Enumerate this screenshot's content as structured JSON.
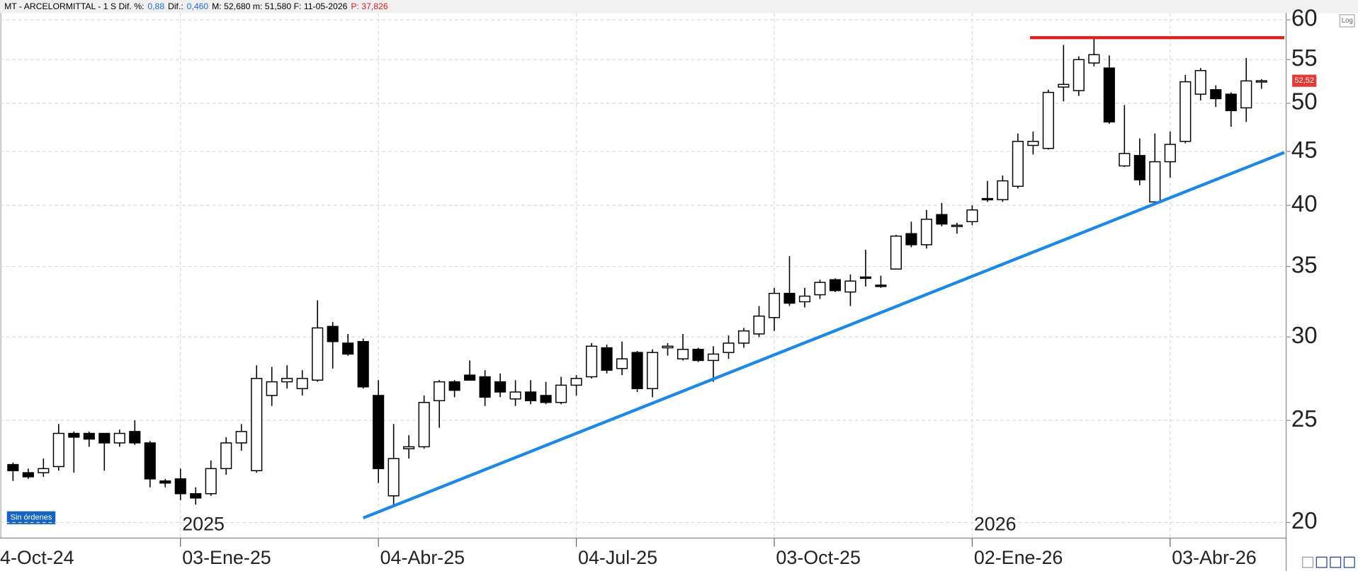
{
  "header": [
    {
      "text": "MT - ARCELORMITTAL -  1 S  Dif. %:",
      "color": "#000000"
    },
    {
      "text": "0,88",
      "color": "#1e6fd9"
    },
    {
      "text": "Dif.:",
      "color": "#000000"
    },
    {
      "text": "0,460",
      "color": "#1e6fd9"
    },
    {
      "text": "M: 52,680  m: 51,580  F: 11-05-2026",
      "color": "#000000"
    },
    {
      "text": "P: 37,826",
      "color": "#e02020"
    }
  ],
  "log_button": "Log",
  "status_badge": "Sin órdenes",
  "chart_data": {
    "type": "candlestick",
    "log_scale": true,
    "grid": true,
    "categories": [
      null,
      null,
      null,
      null,
      null,
      null,
      null,
      null,
      null,
      null,
      null,
      "03-Ene-25",
      null,
      null,
      null,
      null,
      null,
      null,
      null,
      null,
      null,
      null,
      null,
      null,
      "04-Abr-25",
      null,
      null,
      null,
      null,
      null,
      null,
      null,
      null,
      null,
      null,
      null,
      null,
      "04-Jul-25",
      null,
      null,
      null,
      null,
      null,
      null,
      null,
      null,
      null,
      null,
      null,
      null,
      "03-Oct-25",
      null,
      null,
      null,
      null,
      null,
      null,
      null,
      null,
      null,
      null,
      null,
      null,
      "02-Ene-26",
      null,
      null,
      null,
      null,
      null,
      null,
      null,
      null,
      null,
      null,
      null,
      null,
      "03-Abr-26",
      null,
      null,
      null,
      null,
      null,
      null
    ],
    "x_edge_label": "4-Oct-24",
    "year_labels": [
      "2025",
      "2026"
    ],
    "open": [
      22.7,
      22.3,
      22.3,
      22.6,
      24.3,
      24.3,
      24.3,
      23.8,
      24.4,
      23.8,
      21.9,
      22.0,
      21.3,
      21.3,
      22.5,
      23.8,
      22.4,
      26.4,
      27.2,
      26.8,
      27.3,
      30.7,
      29.6,
      29.7,
      26.4,
      21.2,
      23.5,
      23.6,
      26.1,
      27.2,
      27.6,
      27.5,
      27.2,
      26.2,
      26.6,
      26.4,
      26.0,
      27.0,
      27.5,
      29.3,
      28.0,
      29.0,
      26.8,
      29.3,
      28.6,
      29.2,
      28.5,
      29.0,
      29.6,
      30.2,
      31.3,
      33.0,
      32.4,
      32.9,
      34.0,
      33.1,
      34.2,
      33.6,
      34.8,
      37.6,
      36.7,
      39.2,
      38.3,
      38.6,
      40.6,
      40.5,
      41.7,
      45.6,
      45.3,
      51.8,
      51.4,
      54.6,
      54.0,
      43.6,
      44.6,
      40.3,
      44.0,
      46.0,
      51.0,
      51.5,
      51.0,
      49.5,
      52.4
    ],
    "high": [
      22.8,
      22.5,
      23.0,
      24.8,
      24.4,
      24.4,
      24.3,
      24.5,
      25.0,
      23.9,
      22.0,
      22.5,
      21.6,
      22.9,
      24.1,
      24.8,
      28.2,
      28.1,
      28.2,
      27.9,
      32.5,
      31.0,
      30.2,
      29.9,
      27.3,
      24.8,
      24.2,
      26.4,
      27.3,
      27.3,
      28.5,
      27.9,
      27.7,
      27.3,
      27.3,
      27.2,
      27.5,
      27.6,
      29.6,
      29.5,
      29.7,
      29.1,
      29.2,
      29.6,
      30.2,
      29.3,
      29.4,
      30.1,
      30.6,
      32.1,
      33.4,
      35.8,
      33.4,
      34.0,
      34.1,
      34.4,
      36.3,
      34.3,
      37.5,
      38.6,
      39.6,
      40.2,
      38.5,
      40.0,
      42.2,
      42.7,
      46.8,
      47.0,
      51.5,
      56.8,
      55.4,
      57.7,
      55.5,
      49.8,
      46.3,
      46.8,
      47.0,
      53.2,
      54.0,
      52.0,
      51.2,
      55.2,
      52.7
    ],
    "low": [
      21.9,
      22.0,
      22.1,
      22.4,
      22.3,
      23.6,
      22.4,
      23.6,
      23.7,
      21.6,
      21.6,
      21.0,
      20.8,
      21.2,
      22.2,
      23.4,
      22.3,
      25.8,
      26.8,
      26.4,
      27.2,
      28.0,
      28.8,
      26.8,
      21.8,
      20.8,
      23.0,
      23.5,
      24.6,
      26.3,
      27.3,
      25.8,
      26.3,
      25.8,
      25.9,
      25.9,
      25.9,
      26.4,
      27.4,
      27.7,
      27.6,
      26.6,
      26.3,
      28.8,
      28.5,
      28.4,
      27.2,
      28.6,
      29.3,
      30.0,
      30.4,
      32.1,
      32.0,
      32.6,
      33.1,
      32.1,
      33.5,
      33.4,
      34.8,
      36.5,
      36.4,
      38.2,
      37.6,
      38.3,
      40.3,
      40.3,
      41.5,
      44.7,
      45.2,
      50.2,
      50.8,
      54.2,
      47.8,
      43.5,
      41.8,
      40.2,
      42.5,
      45.8,
      50.3,
      49.6,
      47.5,
      48.0,
      51.6
    ],
    "close": [
      22.4,
      22.1,
      22.5,
      24.3,
      24.1,
      24.0,
      23.8,
      24.3,
      23.8,
      22.0,
      21.8,
      21.3,
      21.1,
      22.5,
      23.8,
      24.4,
      27.4,
      27.2,
      27.4,
      27.4,
      30.6,
      29.7,
      28.9,
      26.9,
      22.5,
      23.0,
      23.6,
      26.0,
      27.2,
      26.7,
      27.3,
      26.3,
      26.6,
      26.6,
      26.1,
      26.0,
      27.0,
      27.4,
      29.4,
      27.9,
      28.6,
      26.8,
      29.0,
      29.4,
      29.2,
      28.5,
      28.9,
      29.6,
      30.4,
      31.4,
      33.0,
      32.3,
      32.8,
      33.8,
      33.2,
      33.9,
      34.1,
      33.5,
      37.4,
      36.7,
      38.8,
      38.4,
      38.3,
      39.6,
      40.5,
      42.2,
      46.0,
      46.0,
      51.2,
      52.1,
      55.0,
      55.6,
      48.0,
      44.8,
      42.3,
      44.0,
      45.7,
      52.4,
      53.7,
      50.5,
      49.2,
      52.5,
      52.52
    ],
    "up_color": "#ffffff",
    "down_color": "#000000",
    "outline_color": "#000000",
    "ylim": [
      19.33,
      60.9
    ],
    "yticks": [
      20,
      25,
      30,
      35,
      40,
      45,
      50,
      55,
      60
    ],
    "price_tag": {
      "value": 52.52,
      "label": "52,52",
      "color": "#e53935"
    },
    "trendlines": [
      {
        "x": [
          23,
          83.5
        ],
        "y": [
          20.2,
          44.9
        ],
        "color": "#1e88e5"
      },
      {
        "x": [
          66.8,
          83.5
        ],
        "y": [
          57.7,
          57.7
        ],
        "color": "#e51c1c"
      }
    ]
  }
}
